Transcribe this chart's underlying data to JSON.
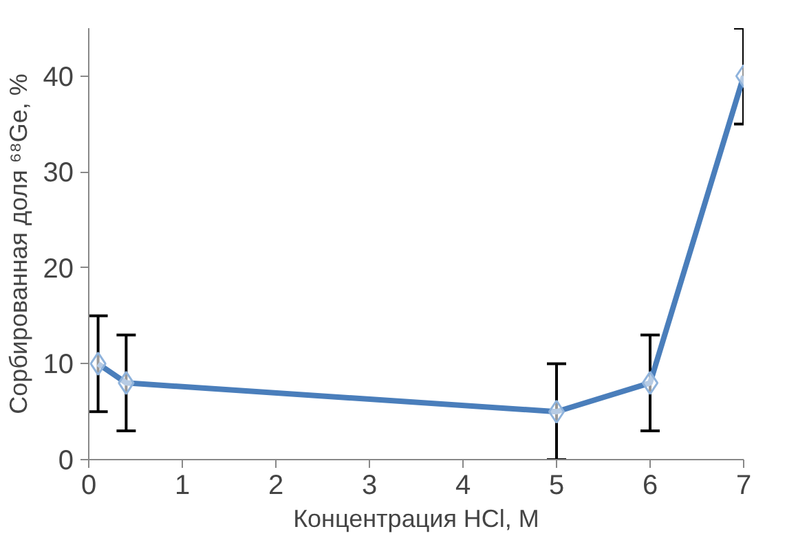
{
  "chart_data": {
    "type": "line",
    "xlabel": "Концентрация HCl, M",
    "ylabel": "Сорбированная доля ⁶⁸Ge, %",
    "x": [
      0.1,
      0.4,
      5,
      6,
      7
    ],
    "series": [
      {
        "color": "#4a7ebb",
        "values": [
          10,
          8,
          5,
          8,
          40
        ],
        "errors": [
          5,
          5,
          5,
          5,
          5
        ]
      }
    ],
    "xlim": [
      0,
      7
    ],
    "xticks": [
      0,
      1,
      2,
      3,
      4,
      5,
      6,
      7
    ],
    "ylim": [
      0,
      45
    ],
    "yticks": [
      0,
      10,
      20,
      30,
      40
    ],
    "grid": false,
    "marker": "diamond",
    "line_style": "solid"
  }
}
